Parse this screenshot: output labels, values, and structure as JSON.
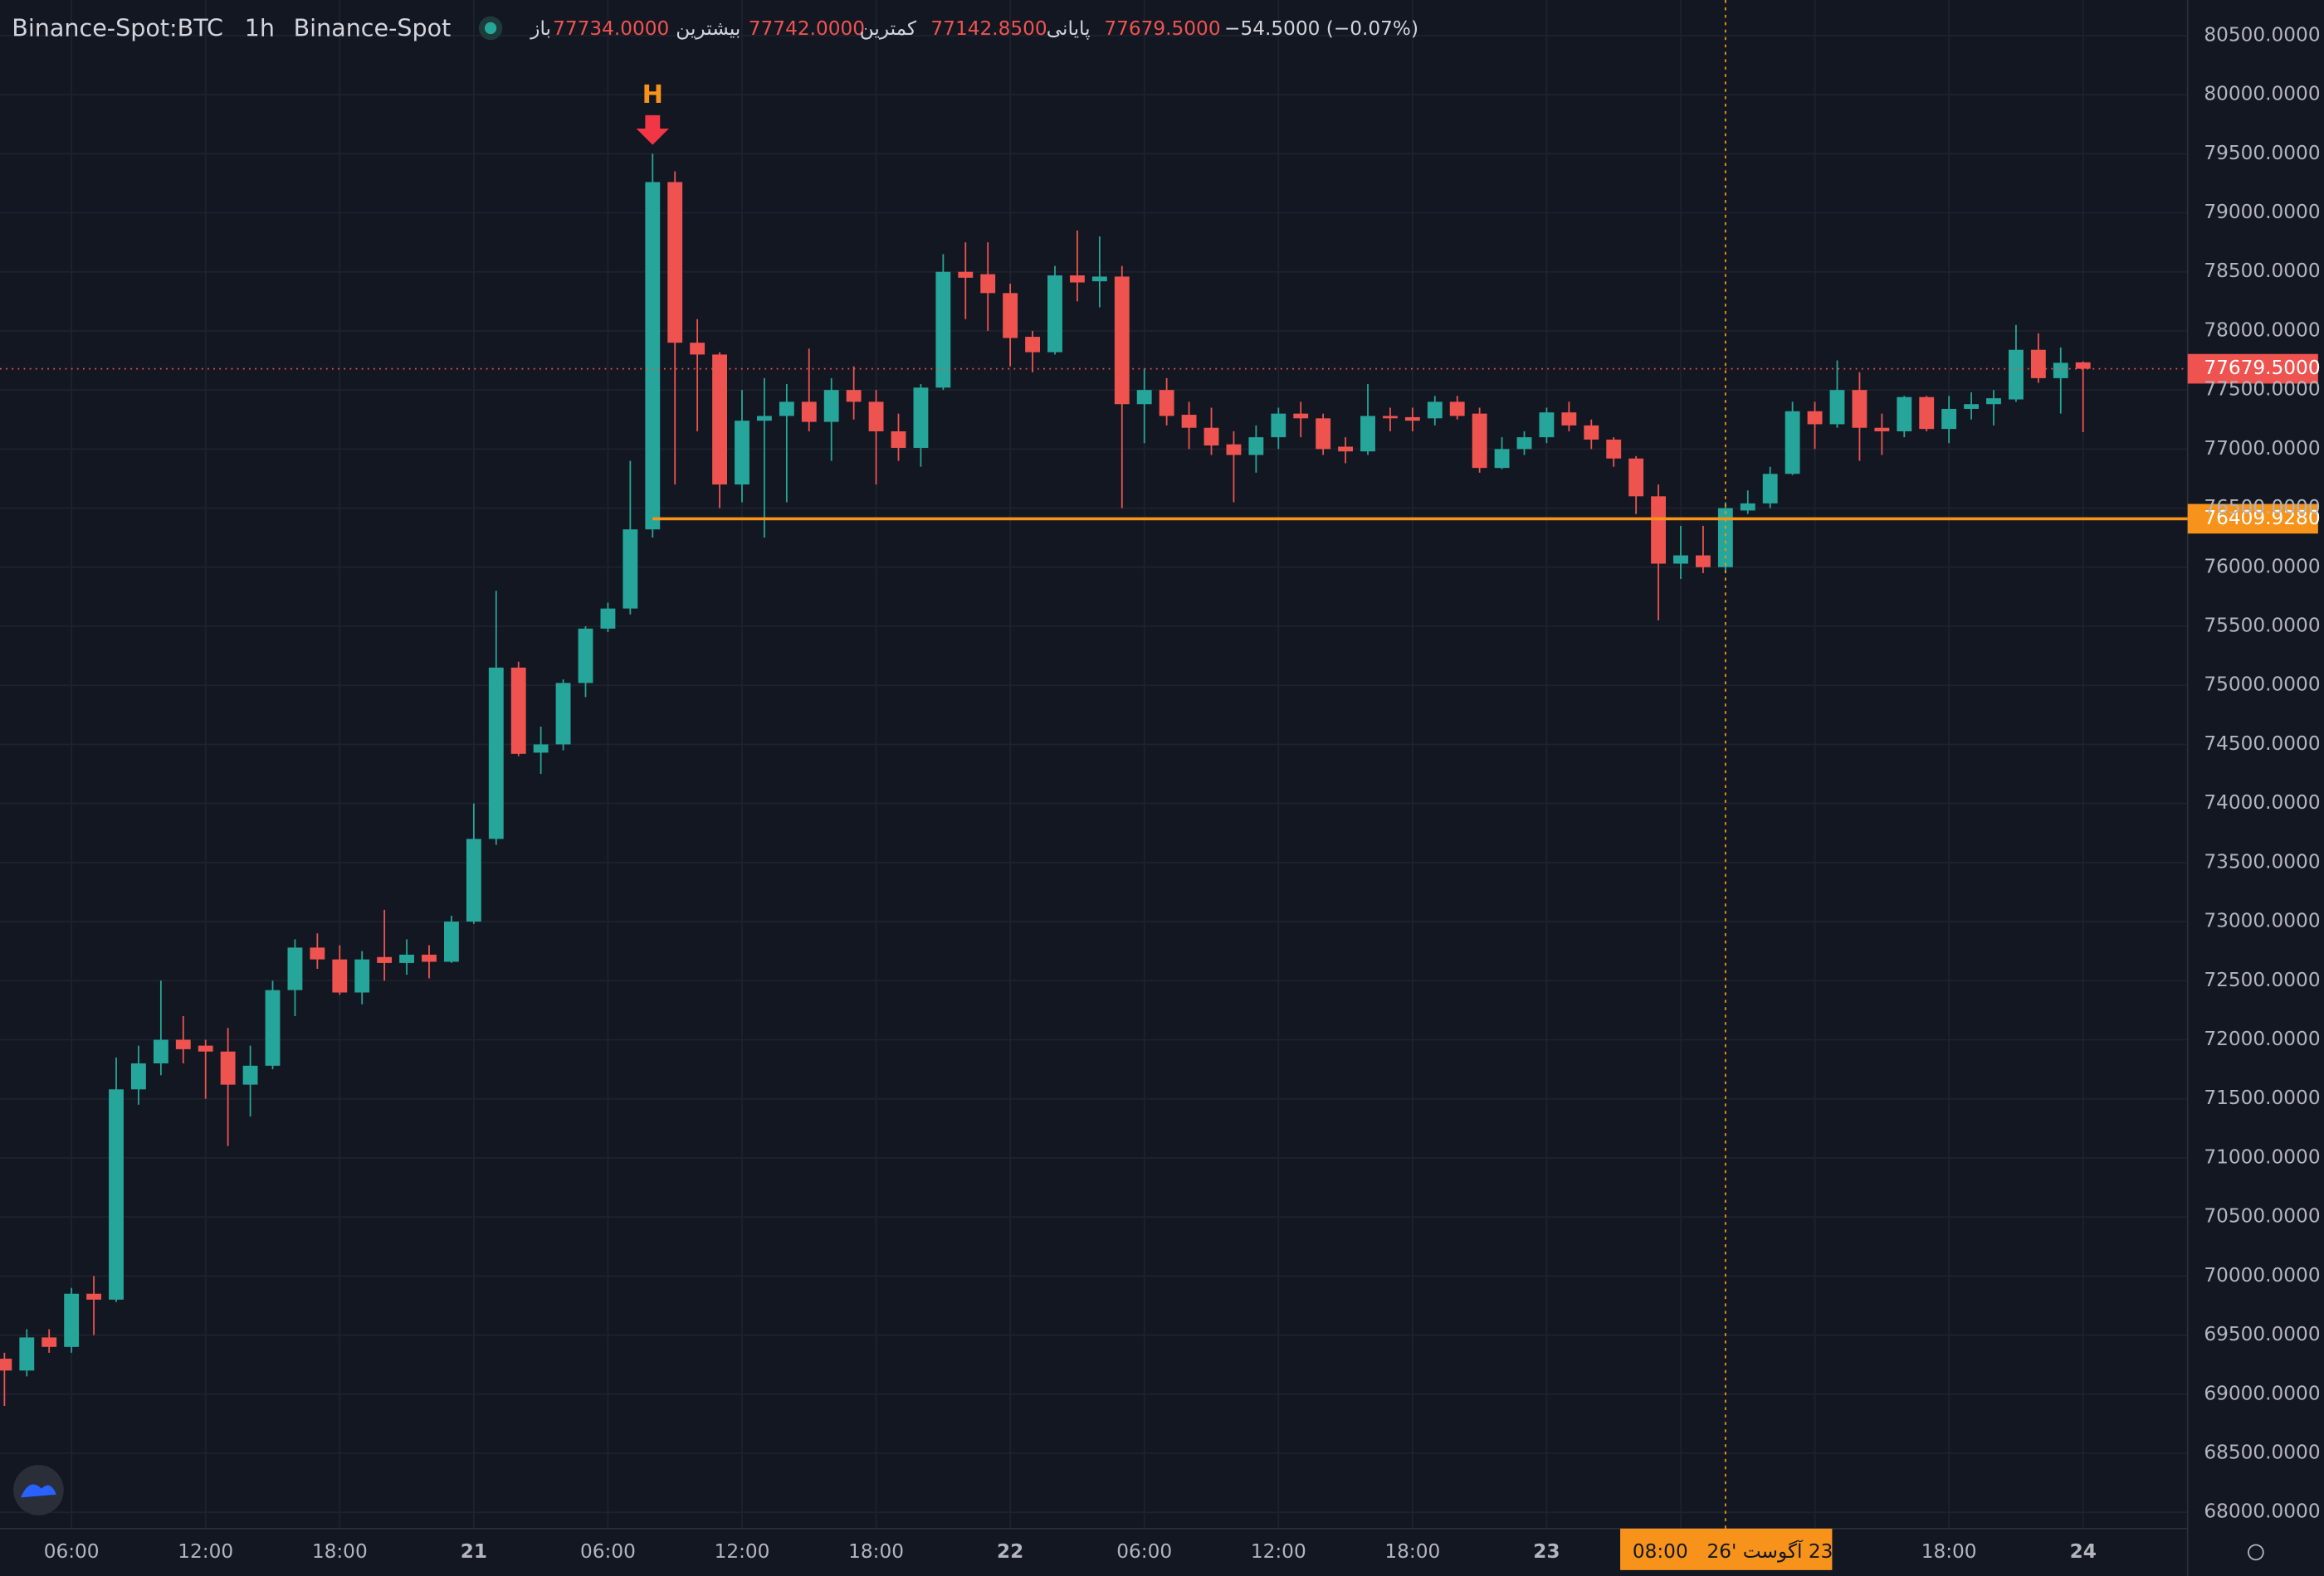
{
  "chart_data": {
    "type": "candlestick",
    "title": "Binance-Spot:BTC",
    "interval": "1h",
    "exchange": "Binance-Spot",
    "legend_ohlc": [
      {
        "label": "باز",
        "value": "77734.0000"
      },
      {
        "label": "بیشترین",
        "value": "77742.0000"
      },
      {
        "label": "کمترین",
        "value": "77142.8500"
      },
      {
        "label": "پایانی",
        "value": "77679.5000"
      }
    ],
    "change": "−54.5000 (−0.07%)",
    "up_color": "#26a69a",
    "down_color": "#ef5350",
    "categories": [
      null,
      null,
      null,
      "06:00",
      null,
      null,
      null,
      null,
      null,
      "12:00",
      null,
      null,
      null,
      null,
      null,
      "18:00",
      null,
      null,
      null,
      null,
      null,
      "21",
      null,
      null,
      null,
      null,
      null,
      "06:00",
      null,
      null,
      null,
      null,
      null,
      "12:00",
      null,
      null,
      null,
      null,
      null,
      "18:00",
      null,
      null,
      null,
      null,
      null,
      "22",
      null,
      null,
      null,
      null,
      null,
      "06:00",
      null,
      null,
      null,
      null,
      null,
      "12:00",
      null,
      null,
      null,
      null,
      null,
      "18:00",
      null,
      null,
      null,
      null,
      null,
      "23",
      null,
      null,
      null,
      null,
      null,
      null,
      null,
      null,
      null,
      null,
      null,
      null,
      null,
      null,
      null,
      null,
      null,
      "18:00",
      null,
      null,
      null,
      null,
      null,
      "24"
    ],
    "open": [
      69300,
      69200,
      69480,
      69400,
      69850,
      69800,
      71580,
      71800,
      72000,
      71950,
      71900,
      71620,
      71780,
      72420,
      72780,
      72680,
      72400,
      72700,
      72650,
      72720,
      72660,
      73000,
      73700,
      75150,
      74430,
      74500,
      75020,
      75480,
      75650,
      76320,
      79260,
      77900,
      77800,
      76700,
      77240,
      77280,
      77400,
      77230,
      77500,
      77400,
      77150,
      77010,
      77520,
      78500,
      78480,
      78320,
      77950,
      77820,
      78470,
      78420,
      78460,
      77380,
      77500,
      77290,
      77180,
      77040,
      76950,
      77100,
      77300,
      77260,
      77020,
      76980,
      77280,
      77270,
      77260,
      77400,
      77300,
      76840,
      77000,
      77100,
      77310,
      77200,
      77080,
      76920,
      76600,
      76030,
      76100,
      76000,
      76480,
      76540,
      76790,
      77320,
      77210,
      77500,
      77180,
      77150,
      77440,
      77170,
      77340,
      77380,
      77420,
      77840,
      77600,
      77734
    ],
    "high": [
      69350,
      69550,
      69550,
      69900,
      70000,
      71850,
      71950,
      72500,
      72200,
      72000,
      72100,
      71950,
      72500,
      72850,
      72900,
      72800,
      72750,
      73100,
      72850,
      72800,
      73050,
      74000,
      75800,
      75200,
      74650,
      75050,
      75500,
      75700,
      76900,
      79500,
      79350,
      78100,
      77820,
      77500,
      77600,
      77550,
      77850,
      77600,
      77700,
      77500,
      77300,
      77550,
      78650,
      78750,
      78750,
      78400,
      78000,
      78550,
      78850,
      78800,
      78550,
      77680,
      77600,
      77400,
      77350,
      77150,
      77200,
      77350,
      77400,
      77300,
      77100,
      77550,
      77350,
      77350,
      77450,
      77450,
      77350,
      77100,
      77150,
      77350,
      77400,
      77250,
      77100,
      76940,
      76700,
      76350,
      76350,
      76550,
      76650,
      76850,
      77400,
      77400,
      77750,
      77650,
      77300,
      77450,
      77450,
      77450,
      77480,
      77500,
      78050,
      77980,
      77860,
      77742
    ],
    "low": [
      68900,
      69150,
      69350,
      69350,
      69500,
      69780,
      71450,
      71700,
      71800,
      71500,
      71100,
      71350,
      71750,
      72200,
      72600,
      72380,
      72300,
      72500,
      72550,
      72520,
      72650,
      72980,
      73650,
      74400,
      74250,
      74450,
      74900,
      75450,
      75600,
      76250,
      76700,
      77150,
      76500,
      76550,
      76250,
      76550,
      77150,
      76900,
      77250,
      76700,
      76900,
      76850,
      77500,
      78100,
      78000,
      77700,
      77650,
      77800,
      78250,
      78200,
      76500,
      77050,
      77200,
      77000,
      76950,
      76550,
      76800,
      77000,
      77100,
      76950,
      76880,
      76950,
      77150,
      77150,
      77200,
      77250,
      76800,
      76830,
      76950,
      77050,
      77150,
      77000,
      76850,
      76450,
      75550,
      75900,
      75950,
      75950,
      76450,
      76500,
      76780,
      77000,
      77180,
      76900,
      76950,
      77100,
      77150,
      77050,
      77250,
      77200,
      77400,
      77560,
      77300,
      77142.85
    ],
    "close": [
      69200,
      69480,
      69400,
      69850,
      69800,
      71580,
      71800,
      72000,
      71920,
      71900,
      71620,
      71780,
      72420,
      72780,
      72680,
      72400,
      72680,
      72650,
      72720,
      72660,
      73000,
      73700,
      75150,
      74420,
      74500,
      75020,
      75480,
      75650,
      76320,
      79260,
      77900,
      77800,
      76700,
      77240,
      77280,
      77400,
      77230,
      77500,
      77400,
      77150,
      77010,
      77520,
      78500,
      78450,
      78320,
      77940,
      77820,
      78470,
      78410,
      78460,
      77380,
      77500,
      77280,
      77180,
      77030,
      76950,
      77100,
      77300,
      77260,
      77000,
      76980,
      77280,
      77260,
      77240,
      77400,
      77280,
      76840,
      77000,
      77100,
      77310,
      77200,
      77080,
      76920,
      76600,
      76030,
      76100,
      76000,
      76500,
      76540,
      76790,
      77320,
      77210,
      77500,
      77180,
      77150,
      77440,
      77170,
      77340,
      77380,
      77430,
      77840,
      77600,
      77730,
      77679.5
    ],
    "ylim": [
      67862,
      80801
    ],
    "yticks": [
      {
        "value": 68000,
        "label": "68000.0000"
      },
      {
        "value": 68500,
        "label": "68500.0000"
      },
      {
        "value": 69000,
        "label": "69000.0000"
      },
      {
        "value": 69500,
        "label": "69500.0000"
      },
      {
        "value": 70000,
        "label": "70000.0000"
      },
      {
        "value": 70500,
        "label": "70500.0000"
      },
      {
        "value": 71000,
        "label": "71000.0000"
      },
      {
        "value": 71500,
        "label": "71500.0000"
      },
      {
        "value": 72000,
        "label": "72000.0000"
      },
      {
        "value": 72500,
        "label": "72500.0000"
      },
      {
        "value": 73000,
        "label": "73000.0000"
      },
      {
        "value": 73500,
        "label": "73500.0000"
      },
      {
        "value": 74000,
        "label": "74000.0000"
      },
      {
        "value": 74500,
        "label": "74500.0000"
      },
      {
        "value": 75000,
        "label": "75000.0000"
      },
      {
        "value": 75500,
        "label": "75500.0000"
      },
      {
        "value": 76000,
        "label": "76000.0000"
      },
      {
        "value": 76500,
        "label": "76500.0000"
      },
      {
        "value": 77000,
        "label": "77000.0000"
      },
      {
        "value": 77500,
        "label": "77500.0000"
      },
      {
        "value": 78000,
        "label": "78000.0000"
      },
      {
        "value": 78500,
        "label": "78500.0000"
      },
      {
        "value": 79000,
        "label": "79000.0000"
      },
      {
        "value": 79500,
        "label": "79500.0000"
      },
      {
        "value": 80000,
        "label": "80000.0000"
      },
      {
        "value": 80500,
        "label": "80500.0000"
      }
    ],
    "grid": true,
    "last_price": {
      "value": 77679.5,
      "label": "77679.5000",
      "color": "#ef5350"
    },
    "level": {
      "value": 76409.928,
      "label": "76409.9280",
      "color": "#f7931a"
    },
    "marker": {
      "label": "H",
      "color": "#f7931a"
    },
    "crosshair": {
      "date_label": "23 آگوست '26",
      "time_label": "08:00",
      "color": "#f7931a"
    }
  }
}
